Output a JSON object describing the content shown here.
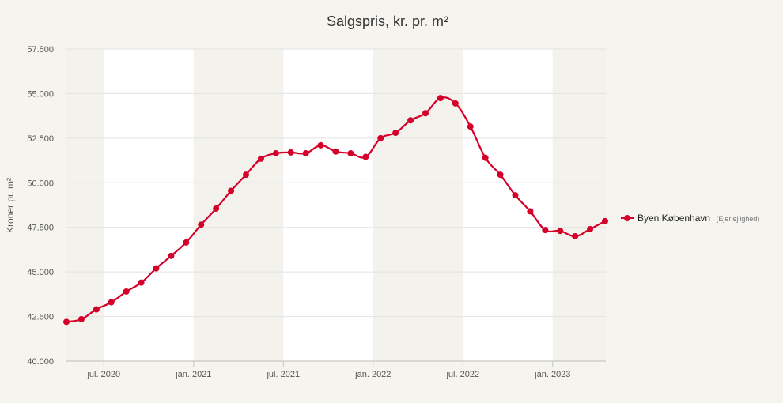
{
  "chart_data": {
    "type": "line",
    "title": "Salgspris, kr. pr. m²",
    "ylabel": "Kroner pr. m²",
    "xlabel": "",
    "ylim": [
      40000,
      57500
    ],
    "yticks": [
      {
        "value": 40000,
        "label": "40.000"
      },
      {
        "value": 42500,
        "label": "42.500"
      },
      {
        "value": 45000,
        "label": "45.000"
      },
      {
        "value": 47500,
        "label": "47.500"
      },
      {
        "value": 50000,
        "label": "50.000"
      },
      {
        "value": 52500,
        "label": "52.500"
      },
      {
        "value": 55000,
        "label": "55.000"
      },
      {
        "value": 57500,
        "label": "57.500"
      }
    ],
    "xticks": [
      {
        "label": "jul. 2020",
        "index": 2.5
      },
      {
        "label": "jan. 2021",
        "index": 8.5
      },
      {
        "label": "jul. 2021",
        "index": 14.5
      },
      {
        "label": "jan. 2022",
        "index": 20.5
      },
      {
        "label": "jul. 2022",
        "index": 26.5
      },
      {
        "label": "jan. 2023",
        "index": 32.5
      }
    ],
    "grid": true,
    "legend_position": "right",
    "series": [
      {
        "name": "Byen København",
        "legend_suffix": "(Ejerlejlighed)",
        "color": "#d5002a",
        "values": [
          42200,
          42350,
          42900,
          43300,
          43900,
          44400,
          45200,
          45900,
          46650,
          47650,
          48550,
          49550,
          50450,
          51350,
          51650,
          51700,
          51650,
          52100,
          51750,
          51650,
          51450,
          52500,
          52800,
          53500,
          53900,
          54750,
          54450,
          53150,
          51400,
          50450,
          49300,
          48400,
          47350,
          47300,
          47000,
          47400,
          47850
        ]
      }
    ],
    "colors": {
      "background": "#f5f4ef",
      "band_light": "#ffffff",
      "band_dark": "#f3f2ec",
      "gridline": "#e2e2e2",
      "axis_text": "#555555",
      "title": "#333333"
    }
  }
}
